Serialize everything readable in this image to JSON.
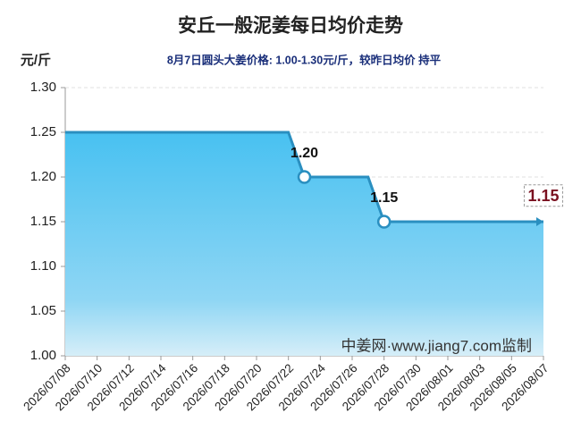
{
  "chart_data": {
    "type": "area",
    "title": "安丘一般泥姜每日均价走势",
    "subtitle": "8月7日圆头大姜价格: 1.00-1.30元/斤，较昨日均价 持平",
    "y_label": "元/斤",
    "annotation": "中姜网·www.jiang7.com监制",
    "categories": [
      "2026/07/08",
      null,
      "2026/07/10",
      null,
      "2026/07/12",
      null,
      "2026/07/14",
      null,
      "2026/07/16",
      null,
      "2026/07/18",
      null,
      "2026/07/20",
      null,
      "2026/07/22",
      null,
      "2026/07/24",
      null,
      "2026/07/26",
      null,
      "2026/07/28",
      null,
      "2026/07/30",
      null,
      "2026/08/01",
      null,
      "2026/08/03",
      null,
      "2026/08/05",
      null,
      "2026/08/07"
    ],
    "values": [
      1.25,
      1.25,
      1.25,
      1.25,
      1.25,
      1.25,
      1.25,
      1.25,
      1.25,
      1.25,
      1.25,
      1.25,
      1.25,
      1.25,
      1.25,
      1.2,
      1.2,
      1.2,
      1.2,
      1.2,
      1.15,
      1.15,
      1.15,
      1.15,
      1.15,
      1.15,
      1.15,
      1.15,
      1.15,
      1.15,
      1.15
    ],
    "value_labels": [
      null,
      null,
      null,
      null,
      null,
      null,
      null,
      null,
      null,
      null,
      null,
      null,
      null,
      null,
      null,
      "1.20",
      null,
      null,
      null,
      null,
      "1.15",
      null,
      null,
      null,
      null,
      null,
      null,
      null,
      null,
      null,
      "1.15"
    ],
    "color": "#2a8fc0",
    "ylim": [
      1.0,
      1.3
    ],
    "yticks": [
      {
        "value": 1.0,
        "label": "1.00"
      },
      {
        "value": 1.05,
        "label": "1.05"
      },
      {
        "value": 1.1,
        "label": "1.10"
      },
      {
        "value": 1.15,
        "label": "1.15"
      },
      {
        "value": 1.2,
        "label": "1.20"
      },
      {
        "value": 1.25,
        "label": "1.25"
      },
      {
        "value": 1.3,
        "label": "1.30"
      }
    ],
    "grid": true
  }
}
